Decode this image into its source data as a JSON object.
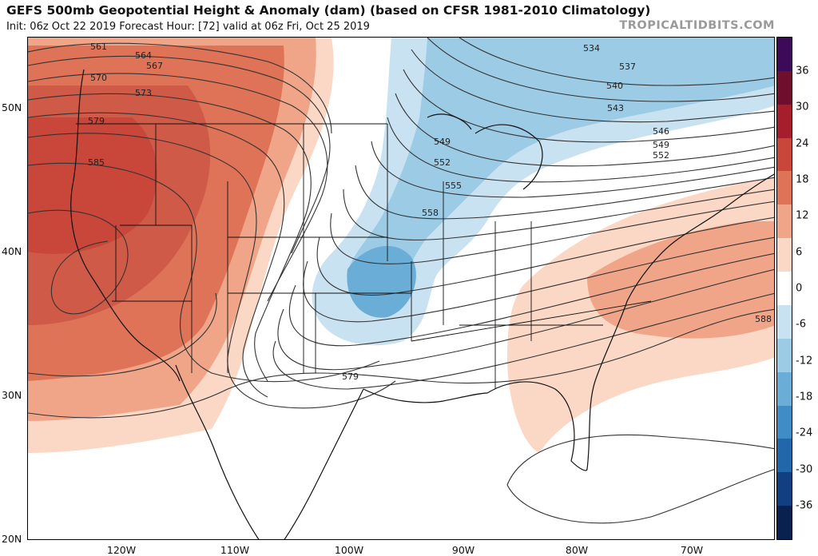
{
  "header": {
    "title": "GEFS 500mb Geopotential Height & Anomaly (dam) (based on CFSR 1981-2010 Climatology)",
    "subtitle": "Init: 06z Oct 22 2019   Forecast Hour: [72]   valid at 06z Fri, Oct 25 2019",
    "brand": "TROPICALTIDBITS.COM"
  },
  "map": {
    "lat_labels": [
      "50N",
      "40N",
      "30N",
      "20N"
    ],
    "lon_labels": [
      "120W",
      "110W",
      "100W",
      "90W",
      "80W",
      "70W"
    ],
    "contour_labels": [
      "561",
      "564",
      "567",
      "570",
      "573",
      "579",
      "585",
      "534",
      "537",
      "540",
      "543",
      "546",
      "549",
      "552",
      "549",
      "552",
      "555",
      "558",
      "579",
      "588"
    ]
  },
  "colorbar": {
    "labels": [
      "36",
      "30",
      "24",
      "18",
      "12",
      "6",
      "0",
      "-6",
      "-12",
      "-18",
      "-24",
      "-30",
      "-36"
    ],
    "colors": [
      "#3d0a5a",
      "#6e0f2e",
      "#a61e2b",
      "#c8463a",
      "#de7357",
      "#f0a588",
      "#fbd7c5",
      "#ffffff",
      "#c9e2f1",
      "#9ccbe6",
      "#6aaed8",
      "#3f8cc6",
      "#2267aa",
      "#123e82",
      "#08214f"
    ]
  }
}
